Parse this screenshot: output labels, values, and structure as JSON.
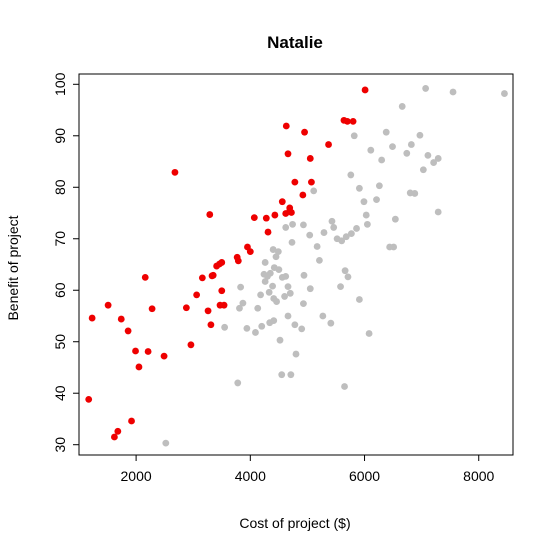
{
  "chart_data": {
    "type": "scatter",
    "title": "Natalie",
    "xlabel": "Cost of project ($)",
    "ylabel": "Benefit of project",
    "xlim": [
      1000,
      8600
    ],
    "ylim": [
      28,
      102
    ],
    "xticks": [
      2000,
      4000,
      6000,
      8000
    ],
    "yticks": [
      30,
      40,
      50,
      60,
      70,
      80,
      90,
      100
    ],
    "grid": false,
    "legend": "none",
    "colors": {
      "highlighted": "#ee0000",
      "other": "#bebebe"
    },
    "series": [
      {
        "color": "#bebebe",
        "points": [
          [
            2520,
            30.3
          ],
          [
            3780,
            42.0
          ],
          [
            4550,
            43.6
          ],
          [
            4710,
            43.6
          ],
          [
            5650,
            41.3
          ],
          [
            3810,
            56.5
          ],
          [
            3870,
            57.5
          ],
          [
            3830,
            60.6
          ],
          [
            3940,
            52.6
          ],
          [
            4090,
            51.8
          ],
          [
            4200,
            53.0
          ],
          [
            4130,
            56.5
          ],
          [
            4180,
            59.1
          ],
          [
            4260,
            61.7
          ],
          [
            4300,
            62.7
          ],
          [
            4390,
            60.8
          ],
          [
            4330,
            59.6
          ],
          [
            4410,
            58.4
          ],
          [
            4340,
            53.7
          ],
          [
            4410,
            54.1
          ],
          [
            4460,
            57.8
          ],
          [
            4350,
            63.3
          ],
          [
            4420,
            64.4
          ],
          [
            4500,
            64.0
          ],
          [
            4450,
            66.5
          ],
          [
            4400,
            67.9
          ],
          [
            4490,
            67.5
          ],
          [
            4260,
            65.4
          ],
          [
            4240,
            63.1
          ],
          [
            4560,
            62.5
          ],
          [
            4620,
            62.7
          ],
          [
            4660,
            60.7
          ],
          [
            4700,
            59.4
          ],
          [
            4600,
            58.8
          ],
          [
            4660,
            55.0
          ],
          [
            4780,
            53.3
          ],
          [
            4520,
            50.3
          ],
          [
            4800,
            47.6
          ],
          [
            4900,
            52.5
          ],
          [
            4930,
            57.4
          ],
          [
            5050,
            60.3
          ],
          [
            4940,
            62.9
          ],
          [
            4730,
            69.3
          ],
          [
            4620,
            72.2
          ],
          [
            4740,
            72.8
          ],
          [
            4930,
            72.7
          ],
          [
            5040,
            70.7
          ],
          [
            5110,
            79.3
          ],
          [
            5210,
            65.8
          ],
          [
            5290,
            71.2
          ],
          [
            5170,
            68.5
          ],
          [
            5430,
            73.4
          ],
          [
            5270,
            55.0
          ],
          [
            5410,
            53.6
          ],
          [
            5460,
            72.2
          ],
          [
            5520,
            70.0
          ],
          [
            5600,
            69.6
          ],
          [
            5660,
            63.8
          ],
          [
            5710,
            62.6
          ],
          [
            5580,
            60.7
          ],
          [
            5680,
            70.4
          ],
          [
            5770,
            71.0
          ],
          [
            5860,
            72.0
          ],
          [
            5760,
            82.4
          ],
          [
            5820,
            90.0
          ],
          [
            5910,
            79.8
          ],
          [
            5990,
            77.2
          ],
          [
            6030,
            74.6
          ],
          [
            6050,
            72.8
          ],
          [
            5910,
            58.2
          ],
          [
            6110,
            87.2
          ],
          [
            6210,
            77.6
          ],
          [
            6300,
            85.3
          ],
          [
            6260,
            80.3
          ],
          [
            6380,
            90.7
          ],
          [
            6440,
            68.4
          ],
          [
            6510,
            68.4
          ],
          [
            6490,
            87.9
          ],
          [
            6540,
            73.8
          ],
          [
            6660,
            95.7
          ],
          [
            6740,
            86.6
          ],
          [
            6820,
            88.3
          ],
          [
            6800,
            78.9
          ],
          [
            6880,
            78.8
          ],
          [
            6970,
            90.1
          ],
          [
            7030,
            83.4
          ],
          [
            7110,
            86.2
          ],
          [
            7070,
            99.2
          ],
          [
            7210,
            84.8
          ],
          [
            7290,
            85.6
          ],
          [
            7290,
            75.2
          ],
          [
            7550,
            98.5
          ],
          [
            8450,
            98.2
          ],
          [
            6080,
            51.6
          ],
          [
            3550,
            52.8
          ]
        ]
      },
      {
        "color": "#ee0000",
        "points": [
          [
            1170,
            38.8
          ],
          [
            1230,
            54.6
          ],
          [
            1510,
            57.1
          ],
          [
            1620,
            31.5
          ],
          [
            1680,
            32.6
          ],
          [
            1740,
            54.4
          ],
          [
            1860,
            52.1
          ],
          [
            1920,
            34.6
          ],
          [
            1990,
            48.2
          ],
          [
            2050,
            45.1
          ],
          [
            2160,
            62.5
          ],
          [
            2210,
            48.1
          ],
          [
            2280,
            56.4
          ],
          [
            2490,
            47.2
          ],
          [
            2680,
            82.9
          ],
          [
            2880,
            56.6
          ],
          [
            2960,
            49.4
          ],
          [
            3060,
            59.1
          ],
          [
            3160,
            62.4
          ],
          [
            3260,
            56.0
          ],
          [
            3310,
            53.3
          ],
          [
            3290,
            74.7
          ],
          [
            3330,
            62.8
          ],
          [
            3350,
            62.9
          ],
          [
            3410,
            64.7
          ],
          [
            3470,
            57.1
          ],
          [
            3460,
            65.1
          ],
          [
            3540,
            57.1
          ],
          [
            3500,
            59.9
          ],
          [
            3500,
            65.4
          ],
          [
            3770,
            66.4
          ],
          [
            3790,
            65.7
          ],
          [
            3950,
            68.4
          ],
          [
            4000,
            67.5
          ],
          [
            4070,
            74.1
          ],
          [
            4310,
            71.3
          ],
          [
            4280,
            74.0
          ],
          [
            4430,
            74.6
          ],
          [
            4560,
            77.2
          ],
          [
            4620,
            74.9
          ],
          [
            4630,
            91.9
          ],
          [
            4660,
            86.5
          ],
          [
            4690,
            76.0
          ],
          [
            4720,
            75.1
          ],
          [
            4780,
            81.0
          ],
          [
            4920,
            78.5
          ],
          [
            4950,
            90.7
          ],
          [
            5050,
            85.6
          ],
          [
            5070,
            81.0
          ],
          [
            5370,
            88.3
          ],
          [
            5640,
            93.0
          ],
          [
            5700,
            92.8
          ],
          [
            5800,
            92.8
          ],
          [
            6010,
            98.9
          ],
          [
            4690,
            75.4
          ]
        ]
      }
    ]
  }
}
